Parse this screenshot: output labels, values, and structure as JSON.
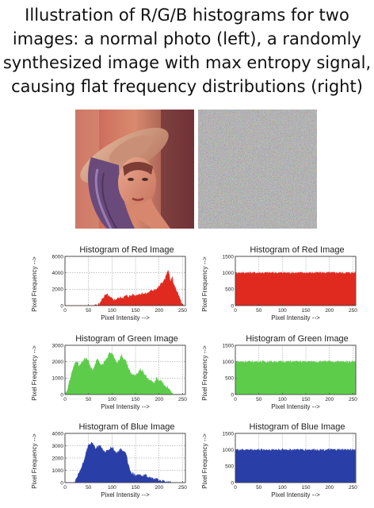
{
  "caption": {
    "lines": [
      "Illustration of R/G/B histograms for two",
      "images: a normal photo (left), a randomly",
      "synthesized image with max entropy signal,",
      "causing flat frequency distributions (right)"
    ]
  },
  "images": {
    "left_desc": "photo",
    "right_desc": "noise"
  },
  "colors": {
    "red": "#e02a20",
    "green": "#5dcc4b",
    "blue": "#2a3ea8"
  },
  "chart_data": [
    {
      "type": "area",
      "title": "Histogram of Red Image",
      "xlabel": "Pixel Intensity -->",
      "ylabel": "Pixel Frequency -->",
      "xlim": [
        0,
        256
      ],
      "ylim": [
        0,
        6000
      ],
      "x_ticks": [
        0,
        50,
        100,
        150,
        200,
        250
      ],
      "y_ticks": [
        0,
        2000,
        4000,
        6000
      ],
      "grid": true,
      "color": "red",
      "x": [
        0,
        20,
        40,
        55,
        62,
        70,
        75,
        80,
        85,
        90,
        95,
        100,
        105,
        110,
        115,
        120,
        125,
        130,
        135,
        140,
        145,
        150,
        155,
        160,
        165,
        170,
        175,
        180,
        185,
        190,
        195,
        200,
        205,
        210,
        213,
        216,
        219,
        222,
        225,
        228,
        231,
        234,
        237,
        240,
        244,
        248,
        252
      ],
      "values": [
        0,
        0,
        0,
        0,
        0,
        100,
        300,
        900,
        1200,
        1300,
        1000,
        800,
        700,
        800,
        900,
        1000,
        1000,
        1200,
        1100,
        1200,
        1300,
        1200,
        1400,
        1400,
        1500,
        1400,
        1500,
        1700,
        1800,
        2000,
        2000,
        2300,
        2700,
        3000,
        3300,
        3800,
        4200,
        3700,
        2900,
        3500,
        2500,
        2200,
        1900,
        1400,
        900,
        200,
        0
      ]
    },
    {
      "type": "area",
      "title": "Histogram of Red Image",
      "xlabel": "Pixel Intensity -->",
      "ylabel": "Pixel Frequency -->",
      "xlim": [
        0,
        256
      ],
      "ylim": [
        0,
        1500
      ],
      "x_ticks": [
        0,
        50,
        100,
        150,
        200,
        250
      ],
      "y_ticks": [
        0,
        500,
        1000,
        1500
      ],
      "grid": true,
      "color": "red",
      "flat_level": 1000
    },
    {
      "type": "area",
      "title": "Histogram of Green Image",
      "xlabel": "Pixel Intensity -->",
      "ylabel": "Pixel Frequency -->",
      "xlim": [
        0,
        256
      ],
      "ylim": [
        0,
        3000
      ],
      "x_ticks": [
        0,
        50,
        100,
        150,
        200,
        250
      ],
      "y_ticks": [
        0,
        1000,
        2000,
        3000
      ],
      "grid": true,
      "color": "green",
      "x": [
        0,
        5,
        10,
        15,
        20,
        25,
        30,
        35,
        40,
        45,
        50,
        55,
        60,
        65,
        70,
        75,
        80,
        85,
        90,
        95,
        100,
        105,
        110,
        115,
        120,
        125,
        130,
        135,
        140,
        145,
        150,
        155,
        160,
        165,
        170,
        175,
        180,
        185,
        190,
        195,
        200,
        205,
        210,
        215,
        220,
        225,
        230
      ],
      "values": [
        0,
        300,
        800,
        1400,
        1800,
        2100,
        1700,
        1900,
        2100,
        2200,
        2000,
        1600,
        1500,
        1900,
        2200,
        1900,
        1800,
        2000,
        2200,
        2600,
        2500,
        2200,
        1900,
        2100,
        2400,
        2200,
        2000,
        1600,
        1300,
        1200,
        1100,
        1300,
        1500,
        1400,
        1200,
        1000,
        900,
        800,
        700,
        1000,
        900,
        800,
        600,
        500,
        400,
        200,
        0
      ]
    },
    {
      "type": "area",
      "title": "Histogram of Green Image",
      "xlabel": "Pixel Intensity -->",
      "ylabel": "Pixel Frequency -->",
      "xlim": [
        0,
        256
      ],
      "ylim": [
        0,
        1500
      ],
      "x_ticks": [
        0,
        50,
        100,
        150,
        200,
        250
      ],
      "y_ticks": [
        0,
        500,
        1000,
        1500
      ],
      "grid": true,
      "color": "green",
      "flat_level": 1000
    },
    {
      "type": "area",
      "title": "Histogram of Blue Image",
      "xlabel": "Pixel Intensity -->",
      "ylabel": "Pixel Frequency -->",
      "xlim": [
        0,
        256
      ],
      "ylim": [
        0,
        4000
      ],
      "x_ticks": [
        0,
        50,
        100,
        150,
        200,
        250
      ],
      "y_ticks": [
        0,
        1000,
        2000,
        3000,
        4000
      ],
      "grid": true,
      "color": "blue",
      "x": [
        0,
        20,
        25,
        30,
        35,
        40,
        45,
        50,
        55,
        60,
        65,
        70,
        75,
        80,
        85,
        90,
        95,
        100,
        105,
        110,
        115,
        120,
        125,
        130,
        135,
        140,
        145,
        150,
        155,
        160,
        165,
        170,
        175,
        180,
        185,
        190,
        195,
        200,
        205,
        210,
        215,
        220,
        225
      ],
      "values": [
        0,
        0,
        300,
        800,
        1200,
        1700,
        2500,
        3000,
        3200,
        3100,
        2800,
        2900,
        3000,
        2700,
        2500,
        2600,
        2700,
        2900,
        2600,
        2400,
        2600,
        2700,
        2500,
        2300,
        1400,
        800,
        700,
        600,
        700,
        600,
        500,
        600,
        500,
        400,
        350,
        300,
        250,
        200,
        150,
        100,
        50,
        20,
        0
      ]
    },
    {
      "type": "area",
      "title": "Histogram of Blue Image",
      "xlabel": "Pixel Intensity -->",
      "ylabel": "Pixel Frequency -->",
      "xlim": [
        0,
        256
      ],
      "ylim": [
        0,
        1500
      ],
      "x_ticks": [
        0,
        50,
        100,
        150,
        200,
        250
      ],
      "y_ticks": [
        0,
        500,
        1000,
        1500
      ],
      "grid": true,
      "color": "blue",
      "flat_level": 1000
    }
  ]
}
